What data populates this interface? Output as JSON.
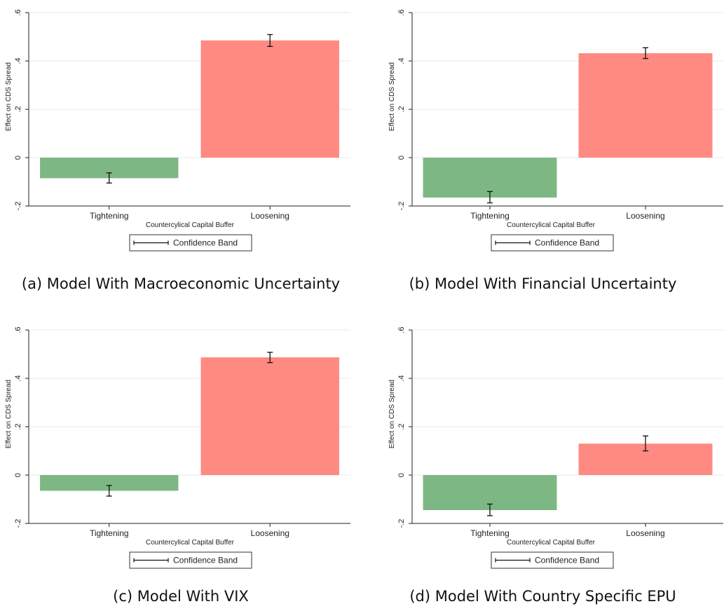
{
  "colors": {
    "negative_bar": "#7db884",
    "positive_bar": "#ff8a82",
    "grid": "#eaeaea",
    "axis": "#222222"
  },
  "chart_data": [
    {
      "type": "bar",
      "caption": "(a) Model With Macroeconomic Uncertainty",
      "categories": [
        "Tightening",
        "Loosening"
      ],
      "values": [
        -0.085,
        0.485
      ],
      "ci_low": [
        -0.105,
        0.46
      ],
      "ci_high": [
        -0.063,
        0.509
      ],
      "xlabel": "Countercylical Capital Buffer",
      "ylabel": "Effect on CDS Spread",
      "ylim": [
        -0.2,
        0.6
      ],
      "yticks": [
        -0.2,
        0,
        0.2,
        0.4,
        0.6
      ],
      "ytick_labels": [
        "-.2",
        "0",
        ".2",
        ".4",
        ".6"
      ],
      "legend": "Confidence Band",
      "grid": true
    },
    {
      "type": "bar",
      "caption": "(b) Model With Financial Uncertainty",
      "categories": [
        "Tightening",
        "Loosening"
      ],
      "values": [
        -0.165,
        0.432
      ],
      "ci_low": [
        -0.187,
        0.41
      ],
      "ci_high": [
        -0.14,
        0.455
      ],
      "xlabel": "Countercylical Capital Buffer",
      "ylabel": "Effect on CDS Spread",
      "ylim": [
        -0.2,
        0.6
      ],
      "yticks": [
        -0.2,
        0,
        0.2,
        0.4,
        0.6
      ],
      "ytick_labels": [
        "-.2",
        "0",
        ".2",
        ".4",
        ".6"
      ],
      "legend": "Confidence Band",
      "grid": true
    },
    {
      "type": "bar",
      "caption": "(c) Model With VIX",
      "categories": [
        "Tightening",
        "Loosening"
      ],
      "values": [
        -0.065,
        0.487
      ],
      "ci_low": [
        -0.087,
        0.465
      ],
      "ci_high": [
        -0.043,
        0.508
      ],
      "xlabel": "Countercylical Capital Buffer",
      "ylabel": "Effect on CDS Spread",
      "ylim": [
        -0.2,
        0.6
      ],
      "yticks": [
        -0.2,
        0,
        0.2,
        0.4,
        0.6
      ],
      "ytick_labels": [
        "-.2",
        "0",
        ".2",
        ".4",
        ".6"
      ],
      "legend": "Confidence Band",
      "grid": true
    },
    {
      "type": "bar",
      "caption": "(d) Model With Country Specific EPU",
      "categories": [
        "Tightening",
        "Loosening"
      ],
      "values": [
        -0.145,
        0.13
      ],
      "ci_low": [
        -0.168,
        0.1
      ],
      "ci_high": [
        -0.12,
        0.162
      ],
      "xlabel": "Countercylical Capital Buffer",
      "ylabel": "Effect on CDS Spread",
      "ylim": [
        -0.2,
        0.6
      ],
      "yticks": [
        -0.2,
        0,
        0.2,
        0.4,
        0.6
      ],
      "ytick_labels": [
        "-.2",
        "0",
        ".2",
        ".4",
        ".6"
      ],
      "legend": "Confidence Band",
      "grid": true
    }
  ]
}
